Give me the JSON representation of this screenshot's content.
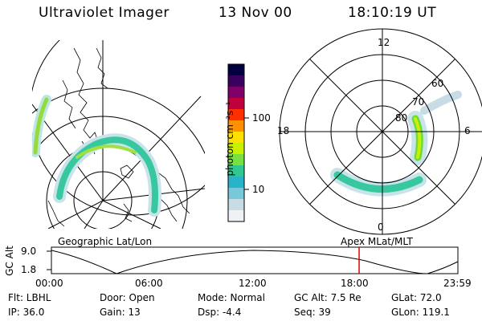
{
  "header": {
    "title": "Ultraviolet Imager",
    "date": "13 Nov 00",
    "time": "18:10:19 UT"
  },
  "geo_panel": {
    "label": "Geographic Lat/Lon"
  },
  "colorbar": {
    "unit_label": "photon cm⁻²s⁻¹",
    "ticks": [
      "100",
      "10"
    ],
    "colors": [
      "#000040",
      "#3a0060",
      "#80006a",
      "#c0003a",
      "#ff3000",
      "#ff9000",
      "#ffe000",
      "#c8f000",
      "#78e040",
      "#30c890",
      "#28b4c8",
      "#78c8dc",
      "#c8dce6",
      "#eef2f5"
    ]
  },
  "polar_panel": {
    "label": "Apex MLat/MLT",
    "mlt_labels": {
      "top": "12",
      "left": "18",
      "right": "6",
      "bottom": "0"
    },
    "lat_labels": [
      "60",
      "70",
      "80"
    ]
  },
  "timeline": {
    "ylabel": "GC Alt",
    "y_ticks": [
      "9.0",
      "1.8"
    ],
    "x_ticks": [
      "00:00",
      "06:00",
      "12:00",
      "18:00",
      "23:59"
    ],
    "current_time_fraction": 0.757
  },
  "info": {
    "filter": "Flt: LBHL",
    "ip": "IP: 36.0",
    "door": "Door: Open",
    "gain": "Gain: 13",
    "mode": "Mode: Normal",
    "dsp": "Dsp:   -4.4",
    "gc_alt": "GC Alt: 7.5 Re",
    "seq": "Seq: 39",
    "glat": "GLat:  72.0",
    "glon": "GLon: 119.1"
  }
}
